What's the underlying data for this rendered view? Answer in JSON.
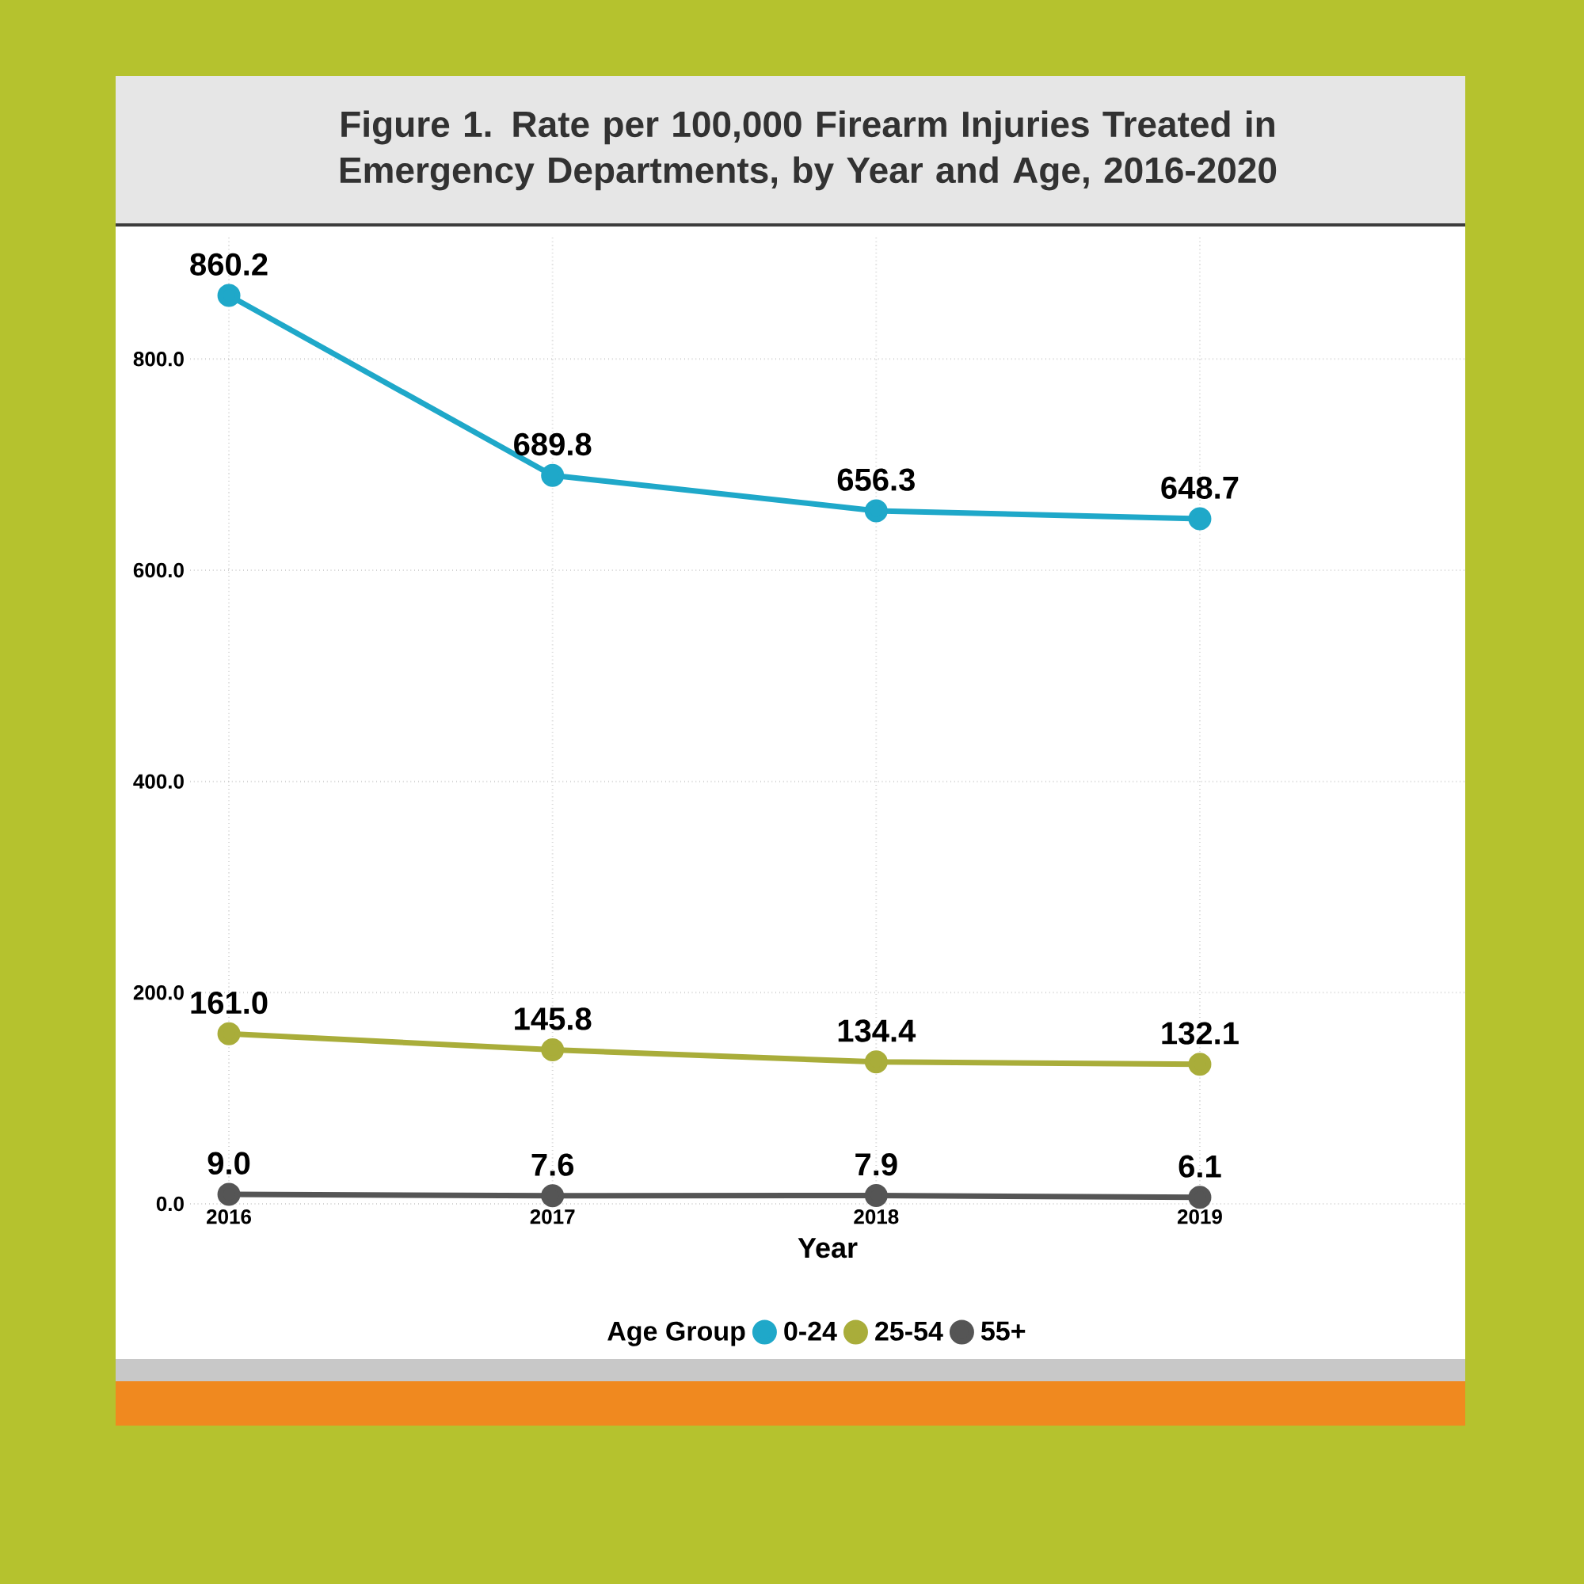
{
  "chart_data": {
    "type": "line",
    "title": "Figure 1. Rate per 100,000 Firearm Injuries Treated in Emergency Departments, by Year and Age, 2016-2020",
    "xlabel": "Year",
    "legend_title": "Age Group",
    "categories": [
      "2016",
      "2017",
      "2018",
      "2019"
    ],
    "series": [
      {
        "name": "0-24",
        "color": "#1fa8c9",
        "values": [
          860.2,
          689.8,
          656.3,
          648.7
        ],
        "value_labels": [
          "860.2",
          "689.8",
          "656.3",
          "648.7"
        ]
      },
      {
        "name": "25-54",
        "color": "#a9ad3a",
        "values": [
          161.0,
          145.8,
          134.4,
          132.1
        ],
        "value_labels": [
          "161.0",
          "145.8",
          "134.4",
          "132.1"
        ]
      },
      {
        "name": "55+",
        "color": "#555555",
        "values": [
          9.0,
          7.6,
          7.9,
          6.1
        ],
        "value_labels": [
          "9.0",
          "7.6",
          "7.9",
          "6.1"
        ]
      }
    ],
    "ylim": [
      0,
      915
    ],
    "yticks": [
      {
        "value": 0,
        "label": "0.0"
      },
      {
        "value": 200,
        "label": "200.0"
      },
      {
        "value": 400,
        "label": "400.0"
      },
      {
        "value": 600,
        "label": "600.0"
      },
      {
        "value": 800,
        "label": "800.0"
      }
    ],
    "grid": true,
    "legend": "bottom",
    "marker": "circle",
    "line_style": "solid"
  }
}
